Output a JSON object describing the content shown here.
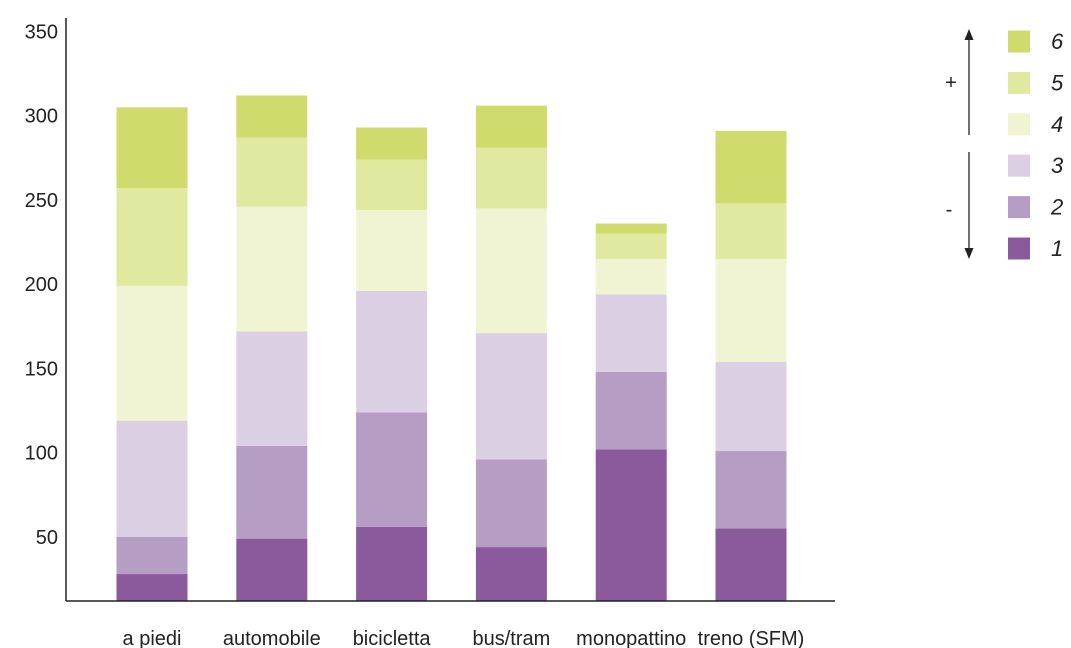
{
  "chart_data": {
    "type": "bar",
    "stacked": true,
    "categories": [
      "a piedi",
      "automobile",
      "bicicletta",
      "bus/tram",
      "monopattino",
      "treno (SFM)"
    ],
    "yticks": [
      50,
      100,
      150,
      200,
      250,
      300,
      350
    ],
    "ylim": [
      12,
      358
    ],
    "grid": false,
    "legend_position": "top-right",
    "series": [
      {
        "name": "1",
        "color": "#8a5a9c",
        "values": [
          28,
          49,
          56,
          44,
          102,
          55
        ]
      },
      {
        "name": "2",
        "color": "#b69dc4",
        "values": [
          22,
          55,
          68,
          52,
          46,
          46
        ]
      },
      {
        "name": "3",
        "color": "#dbcfe3",
        "values": [
          69,
          68,
          72,
          75,
          46,
          53
        ]
      },
      {
        "name": "4",
        "color": "#f0f4d2",
        "values": [
          80,
          74,
          48,
          74,
          21,
          61
        ]
      },
      {
        "name": "5",
        "color": "#e1e8a0",
        "values": [
          58,
          41,
          30,
          36,
          15,
          33
        ]
      },
      {
        "name": "6",
        "color": "#d0db6d",
        "values": [
          48,
          25,
          19,
          25,
          6,
          43
        ]
      }
    ],
    "legend_order": [
      "6",
      "5",
      "4",
      "3",
      "2",
      "1"
    ],
    "scale_labels": {
      "plus": "+",
      "minus": "-"
    }
  }
}
